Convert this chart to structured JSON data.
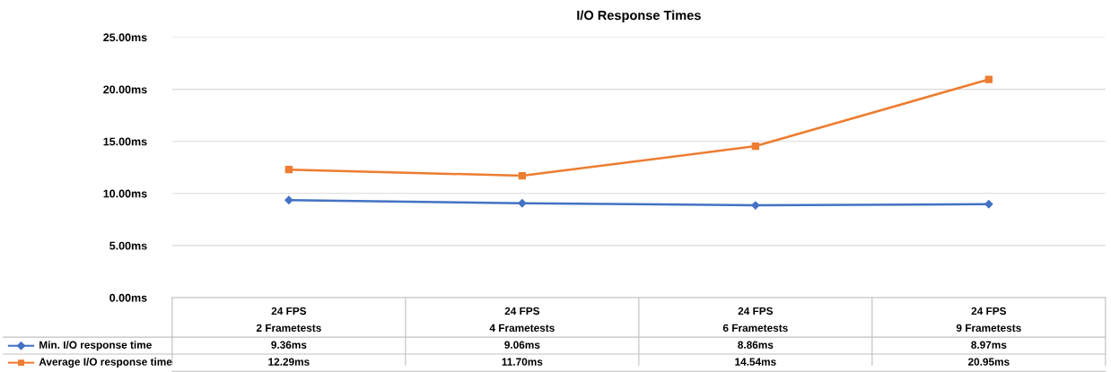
{
  "chart_data": {
    "type": "line",
    "title": "I/O Response Times",
    "categories": [
      "24 FPS\n2 Frametests",
      "24 FPS\n4 Frametests",
      "24 FPS\n6 Frametests",
      "24 FPS\n9 Frametests"
    ],
    "series": [
      {
        "name": "Min. I/O response time",
        "color": "#4472c4",
        "marker": "diamond",
        "values": [
          9.36,
          9.06,
          8.86,
          8.97
        ],
        "value_labels": [
          "9.36ms",
          "9.06ms",
          "8.86ms",
          "8.97ms"
        ]
      },
      {
        "name": "Average I/O response time",
        "color": "#ed7d31",
        "marker": "square",
        "values": [
          12.29,
          11.7,
          14.54,
          20.95
        ],
        "value_labels": [
          "12.29ms",
          "11.70ms",
          "14.54ms",
          "20.95ms"
        ]
      }
    ],
    "ylim": [
      0,
      25
    ],
    "yticks": [
      {
        "value": 0,
        "label": "0.00ms"
      },
      {
        "value": 5,
        "label": "5.00ms"
      },
      {
        "value": 10,
        "label": "10.00ms"
      },
      {
        "value": 15,
        "label": "15.00ms"
      },
      {
        "value": 20,
        "label": "20.00ms"
      },
      {
        "value": 25,
        "label": "25.00ms"
      }
    ],
    "grid": "y",
    "legend": "bottom",
    "line_style": "solid"
  }
}
